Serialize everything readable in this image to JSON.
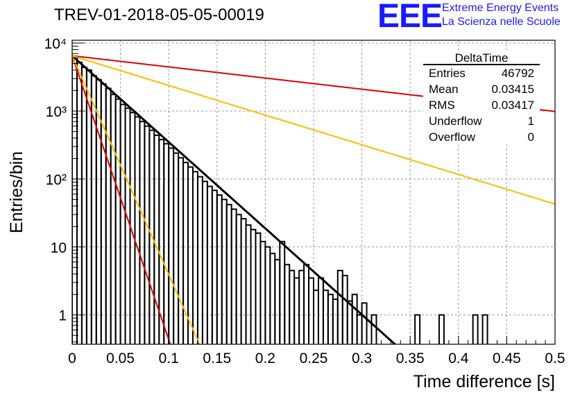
{
  "header": {
    "title": "TREV-01-2018-05-05-00019",
    "logo_mark": "EEE",
    "logo_line_1": "Extreme Energy Events",
    "logo_line_2": "La Scienza nelle Scuole"
  },
  "colors": {
    "histogram": "#000000",
    "fit": "#000000",
    "red_band": "#dd0000",
    "yellow_band": "#ffbb00",
    "grid": "#999999",
    "logo": "#1a1aff"
  },
  "stats_box": {
    "title": "DeltaTime",
    "rows": [
      {
        "label": "Entries",
        "value": "46792"
      },
      {
        "label": "Mean",
        "value": "0.03415"
      },
      {
        "label": "RMS",
        "value": "0.03417"
      },
      {
        "label": "Underflow",
        "value": "1"
      },
      {
        "label": "Overflow",
        "value": "0"
      }
    ]
  },
  "chart_data": {
    "type": "histogram",
    "title": "TREV-01-2018-05-05-00019",
    "xlabel": "Time difference [s]",
    "ylabel": "Entries/bin",
    "xlim": [
      0,
      0.5
    ],
    "ylim": [
      0.37,
      11000
    ],
    "y_scale": "log",
    "grid": true,
    "x_ticks": [
      {
        "value": 0,
        "label": "0"
      },
      {
        "value": 0.05,
        "label": "0.05"
      },
      {
        "value": 0.1,
        "label": "0.1"
      },
      {
        "value": 0.15,
        "label": "0.15"
      },
      {
        "value": 0.2,
        "label": "0.2"
      },
      {
        "value": 0.25,
        "label": "0.25"
      },
      {
        "value": 0.3,
        "label": "0.3"
      },
      {
        "value": 0.35,
        "label": "0.35"
      },
      {
        "value": 0.4,
        "label": "0.4"
      },
      {
        "value": 0.45,
        "label": "0.45"
      },
      {
        "value": 0.5,
        "label": "0.5"
      }
    ],
    "y_ticks": [
      {
        "value": 1,
        "label": "1"
      },
      {
        "value": 10,
        "label": "10"
      },
      {
        "value": 100,
        "label": "10²"
      },
      {
        "value": 1000,
        "label": "10³"
      },
      {
        "value": 10000,
        "label": "10⁴"
      }
    ],
    "bin_width": 0.005,
    "bin_start": 0,
    "bin_counts": [
      6200,
      5200,
      4400,
      4000,
      3300,
      2900,
      2500,
      2150,
      1750,
      1500,
      1250,
      1100,
      950,
      820,
      700,
      600,
      520,
      440,
      380,
      330,
      285,
      240,
      205,
      175,
      150,
      128,
      108,
      92,
      78,
      68,
      58,
      50,
      42,
      36,
      30,
      26,
      21,
      18,
      16,
      12,
      10,
      8,
      6.5,
      12,
      5.5,
      4.5,
      3.5,
      4.5,
      5.5,
      3.5,
      2.3,
      3.5,
      2.3,
      2,
      1.7,
      4.5,
      3.8,
      1.6,
      2,
      1,
      1.5,
      0,
      1,
      0,
      0,
      0,
      0,
      0,
      0,
      0,
      0,
      1,
      0,
      0,
      0,
      0,
      1,
      0,
      0,
      0,
      0,
      0,
      0,
      1,
      0,
      1,
      0,
      0,
      0,
      0,
      0,
      0,
      0,
      0,
      0,
      0,
      0,
      0,
      0,
      0
    ],
    "curves": [
      {
        "role": "fit",
        "color": "#000000",
        "y0": 6500,
        "tau": 0.0342
      },
      {
        "role": "red-slow",
        "color": "#dd0000",
        "y0": 6500,
        "tau": 0.265
      },
      {
        "role": "yellow-slow",
        "color": "#ffbb00",
        "y0": 6500,
        "tau": 0.0995
      },
      {
        "role": "red-fast",
        "color": "#dd0000",
        "y0": 6500,
        "tau": 0.0104
      },
      {
        "role": "yellow-fast",
        "color": "#ffbb00",
        "y0": 6500,
        "tau": 0.0135
      }
    ]
  }
}
